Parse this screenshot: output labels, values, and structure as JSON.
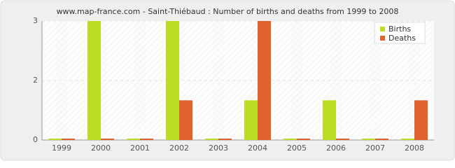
{
  "chart_data": {
    "type": "bar",
    "title": "www.map-france.com - Saint-Thiébaud : Number of births and deaths from 1999 to 2008",
    "categories": [
      "1999",
      "2000",
      "2001",
      "2002",
      "2003",
      "2004",
      "2005",
      "2006",
      "2007",
      "2008"
    ],
    "series": [
      {
        "name": "Births",
        "color": "#bbdd22",
        "values": [
          0,
          3,
          0,
          3,
          0,
          1,
          0,
          1,
          0,
          0
        ]
      },
      {
        "name": "Deaths",
        "color": "#e0632e",
        "values": [
          0,
          0,
          0,
          1,
          0,
          3,
          0,
          0,
          0,
          1
        ]
      }
    ],
    "ylim": [
      0,
      3
    ],
    "yticks": [
      0,
      {
        "value": 1.5,
        "label": "2"
      },
      3
    ],
    "grid": true,
    "legend": "top-right"
  }
}
